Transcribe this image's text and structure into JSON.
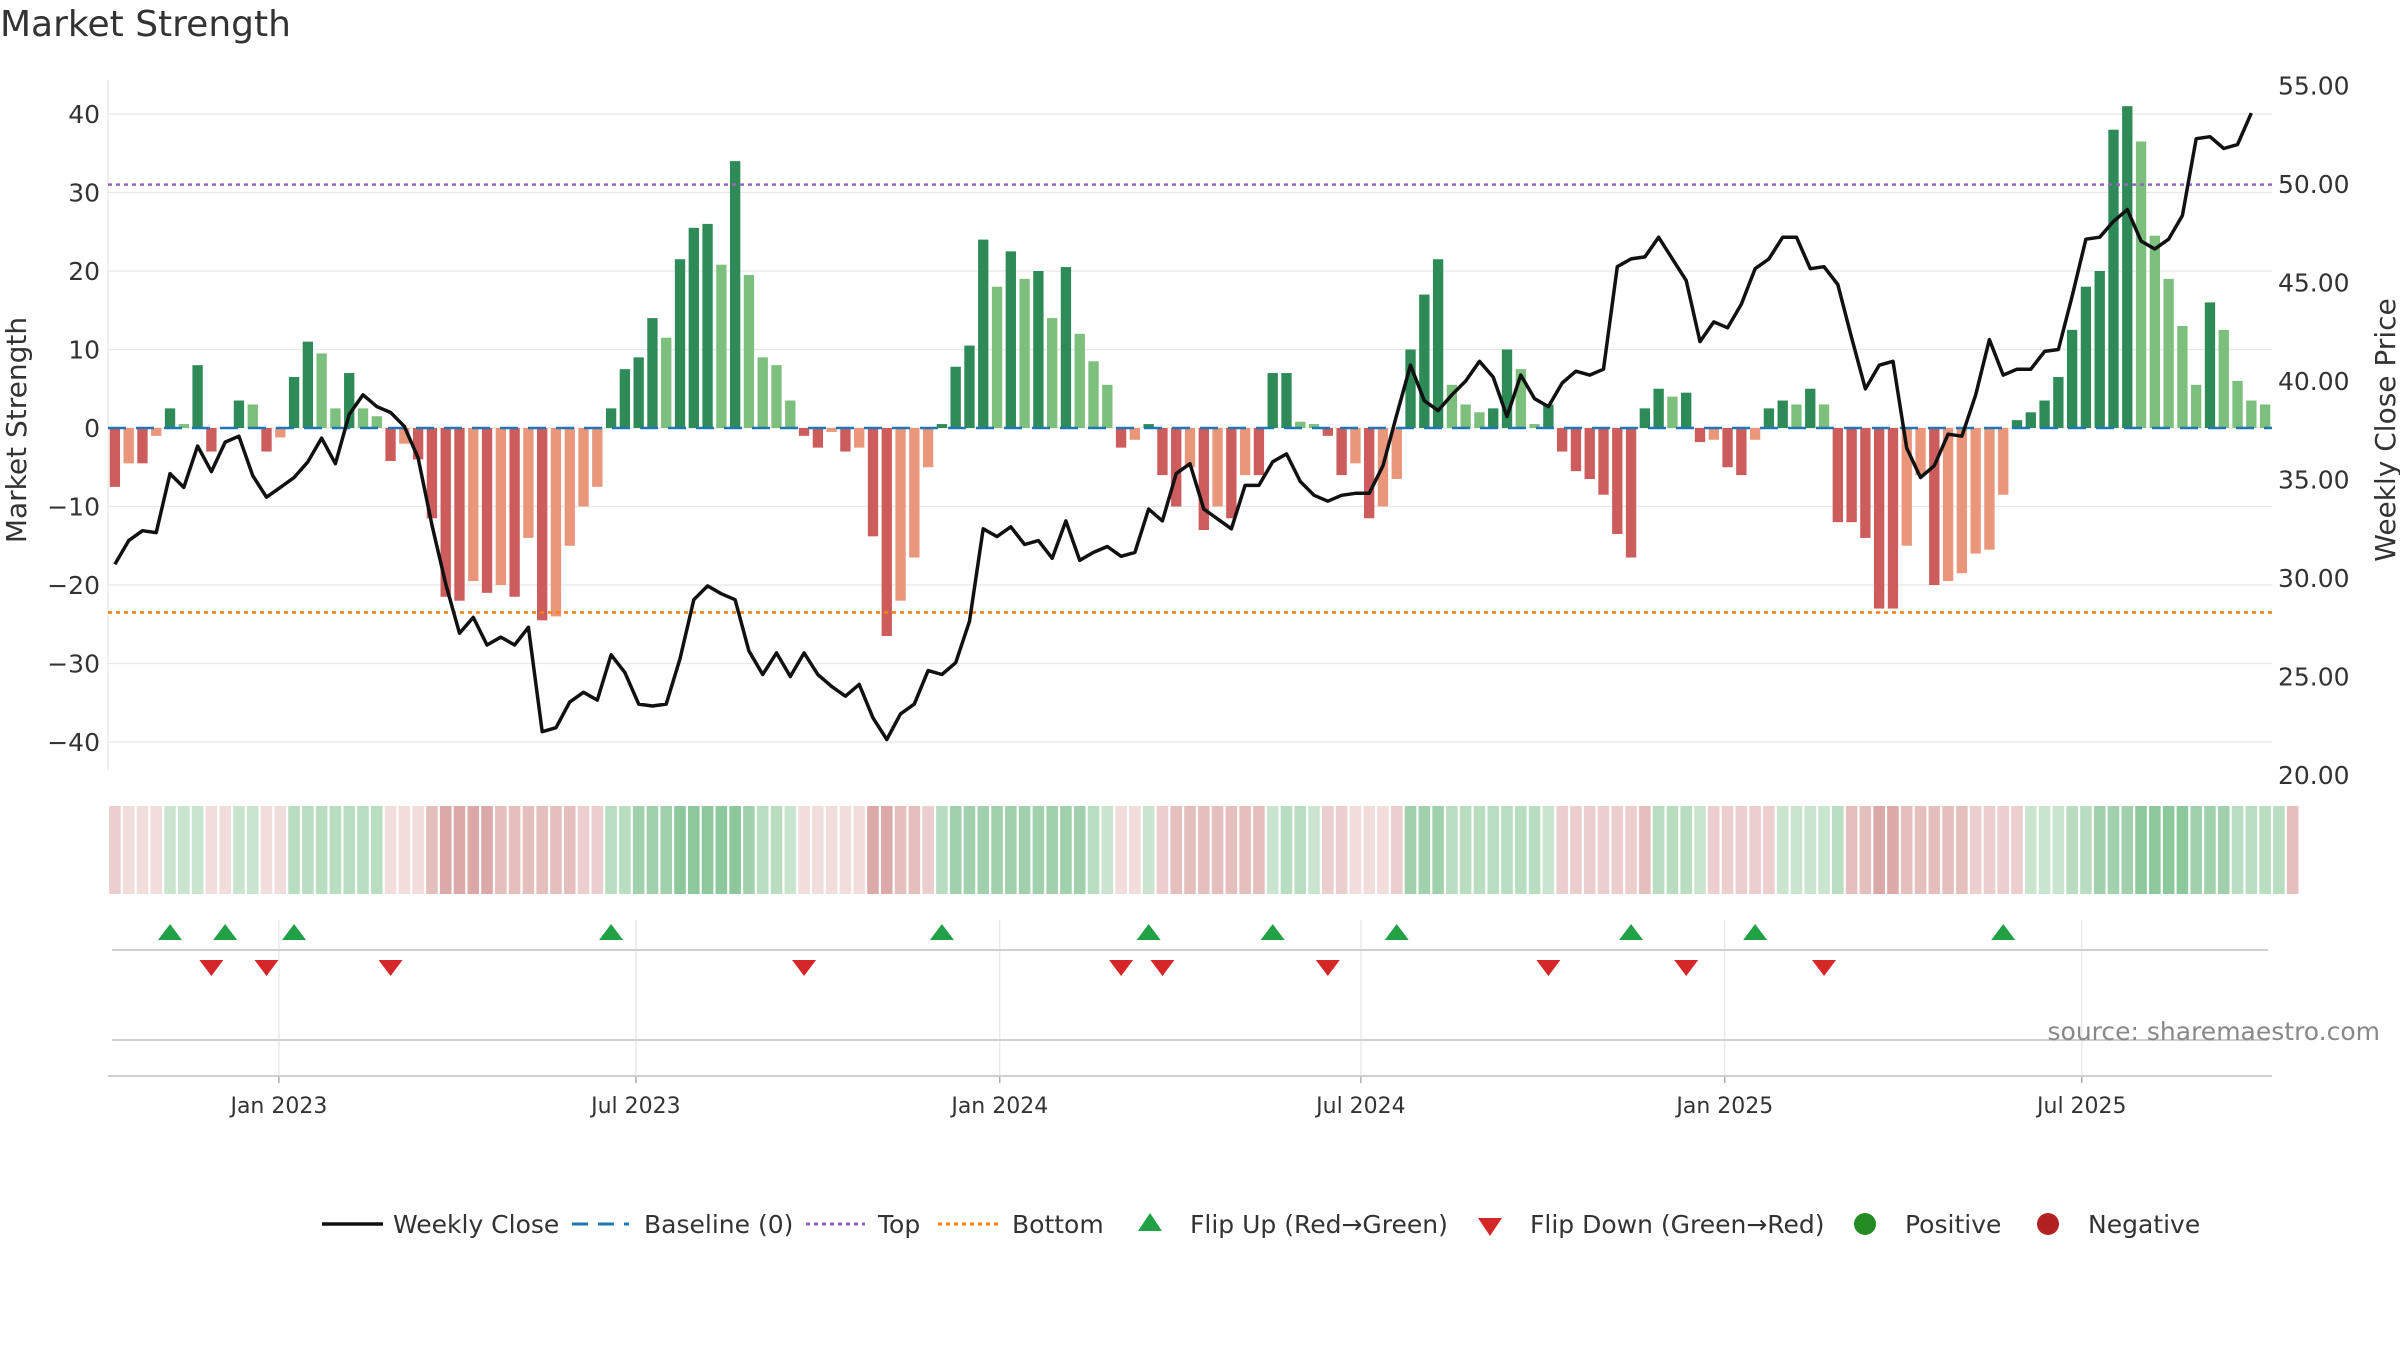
{
  "chart_data": {
    "type": "bar",
    "title": "Market Strength",
    "ylabel": "Market Strength",
    "y2label": "Weekly Close Price",
    "ylim": [
      -44,
      44
    ],
    "y2lim": [
      20,
      55
    ],
    "yticks": [
      40,
      30,
      20,
      10,
      0,
      -10,
      -20,
      -30,
      -40
    ],
    "y2ticks": [
      "55.00",
      "50.00",
      "45.00",
      "40.00",
      "35.00",
      "30.00",
      "25.00",
      "20.00"
    ],
    "top_level": 31,
    "bottom_level": -23.5,
    "start_date": "2022-10-07",
    "x_ticks": [
      {
        "label": "Jan 2023",
        "week": 12.4
      },
      {
        "label": "Jul 2023",
        "week": 38.3
      },
      {
        "label": "Jan 2024",
        "week": 64.7
      },
      {
        "label": "Jul 2024",
        "week": 90.9
      },
      {
        "label": "Jan 2025",
        "week": 117.3
      },
      {
        "label": "Jul 2025",
        "week": 143.2
      }
    ],
    "strength": [
      -7.5,
      -4.5,
      -4.5,
      -1,
      2.5,
      0.5,
      8,
      -3,
      0,
      3.5,
      3,
      -3,
      -1.2,
      6.5,
      11,
      9.5,
      2.5,
      7,
      2.5,
      1.5,
      -4.2,
      -2,
      -4,
      -11.5,
      -21.5,
      -22,
      -19.5,
      -21,
      -20,
      -21.5,
      -14,
      -24.5,
      -24,
      -15,
      -10,
      -7.5,
      2.5,
      7.5,
      9,
      14,
      11.5,
      21.5,
      25.5,
      26,
      20.8,
      34,
      19.5,
      9,
      8,
      3.5,
      -1,
      -2.5,
      -0.5,
      -3,
      -2.5,
      -13.8,
      -26.5,
      -22,
      -16.5,
      -5,
      0.5,
      7.8,
      10.5,
      24,
      18,
      22.5,
      19,
      20,
      14,
      20.5,
      12,
      8.5,
      5.5,
      -2.5,
      -1.5,
      0.5,
      -6,
      -10,
      -5,
      -13,
      -10,
      -11.5,
      -6,
      -6,
      7,
      7,
      0.8,
      0.5,
      -1,
      -6,
      -4.5,
      -11.5,
      -10,
      -6.5,
      10,
      17,
      21.5,
      5.5,
      3,
      2,
      2.5,
      10,
      7.5,
      0.5,
      3,
      -3,
      -5.5,
      -6.5,
      -8.5,
      -13.5,
      -16.5,
      2.5,
      5,
      4,
      4.5,
      -1.8,
      -1.5,
      -5,
      -6,
      -1.5,
      2.5,
      3.5,
      3,
      5,
      3,
      -12,
      -12,
      -14,
      -23,
      -23,
      -15,
      -6,
      -20,
      -19.5,
      -18.5,
      -16,
      -15.5,
      -8.5,
      1,
      2,
      3.5,
      6.5,
      12.5,
      18,
      20,
      38,
      41,
      36.5,
      24.5,
      19,
      13,
      5.5,
      16,
      12.5,
      6,
      3.5,
      3
    ],
    "weekly_close": [
      30.7,
      31.9,
      32.4,
      32.3,
      35.3,
      34.6,
      36.7,
      35.4,
      36.9,
      37.2,
      35.2,
      34.1,
      34.6,
      35.1,
      35.9,
      37.1,
      35.8,
      38.3,
      39.3,
      38.7,
      38.4,
      37.7,
      36.1,
      32.7,
      29.7,
      27.2,
      28,
      26.6,
      27,
      26.6,
      27.5,
      22.2,
      22.4,
      23.7,
      24.2,
      23.8,
      26.1,
      25.2,
      23.6,
      23.5,
      23.6,
      25.9,
      28.9,
      29.6,
      29.2,
      28.9,
      26.3,
      25.1,
      26.2,
      25,
      26.2,
      25.1,
      24.5,
      24,
      24.6,
      22.9,
      21.8,
      23.1,
      23.6,
      25.3,
      25.1,
      25.7,
      27.8,
      32.5,
      32.1,
      32.6,
      31.7,
      31.9,
      31,
      32.9,
      30.9,
      31.3,
      31.6,
      31.1,
      31.3,
      33.5,
      32.9,
      35.3,
      35.8,
      33.5,
      33,
      32.5,
      34.7,
      34.7,
      35.9,
      36.3,
      34.9,
      34.2,
      33.9,
      34.2,
      34.3,
      34.3,
      35.7,
      38.3,
      40.8,
      39,
      38.5,
      39.3,
      40,
      41,
      40.2,
      38.2,
      40.3,
      39.1,
      38.7,
      39.9,
      40.5,
      40.3,
      40.6,
      45.8,
      46.2,
      46.3,
      47.3,
      46.2,
      45.1,
      42,
      43,
      42.7,
      43.9,
      45.7,
      46.2,
      47.3,
      47.3,
      45.7,
      45.8,
      44.9,
      42.2,
      39.6,
      40.8,
      41,
      36.6,
      35.1,
      35.7,
      37.3,
      37.2,
      39.3,
      42.1,
      40.3,
      40.6,
      40.6,
      41.5,
      41.6,
      44.3,
      47.2,
      47.3,
      48.1,
      48.7,
      47.1,
      46.7,
      47.2,
      48.4,
      52.3,
      52.4,
      51.8,
      52,
      53.6
    ],
    "sentiment_shade": [
      2,
      1,
      1,
      1,
      2,
      2,
      2,
      1,
      1,
      2,
      2,
      1,
      1,
      3,
      3,
      3,
      3,
      3,
      3,
      3,
      1,
      1,
      1,
      3,
      4,
      4,
      4,
      4,
      3,
      3,
      3,
      3,
      3,
      3,
      2,
      2,
      3,
      3,
      4,
      4,
      4,
      5,
      5,
      5,
      5,
      5,
      4,
      3,
      3,
      2,
      1,
      1,
      1,
      1,
      1,
      4,
      4,
      3,
      3,
      2,
      3,
      4,
      4,
      4,
      4,
      4,
      4,
      4,
      4,
      4,
      4,
      3,
      2,
      1,
      1,
      2,
      2,
      3,
      3,
      3,
      3,
      3,
      3,
      3,
      2,
      3,
      3,
      2,
      2,
      2,
      1,
      1,
      1,
      2,
      4,
      4,
      4,
      3,
      3,
      3,
      3,
      3,
      3,
      3,
      2,
      2,
      2,
      2,
      2,
      2,
      2,
      3,
      3,
      3,
      3,
      2,
      2,
      2,
      2,
      2,
      2,
      2,
      2,
      2,
      2,
      3,
      3,
      3,
      4,
      4,
      3,
      3,
      3,
      3,
      3,
      2,
      2,
      2,
      2,
      2,
      2,
      2,
      3,
      3,
      4,
      4,
      4,
      5,
      5,
      5,
      5,
      4,
      4,
      4,
      3,
      3,
      3,
      3,
      3
    ],
    "sentiment_sign": [
      "-",
      "-",
      "-",
      "-",
      "+",
      "+",
      "+",
      "-",
      "-",
      "+",
      "+",
      "-",
      "-",
      "+",
      "+",
      "+",
      "+",
      "+",
      "+",
      "+",
      "-",
      "-",
      "-",
      "-",
      "-",
      "-",
      "-",
      "-",
      "-",
      "-",
      "-",
      "-",
      "-",
      "-",
      "-",
      "-",
      "+",
      "+",
      "+",
      "+",
      "+",
      "+",
      "+",
      "+",
      "+",
      "+",
      "+",
      "+",
      "+",
      "+",
      "-",
      "-",
      "-",
      "-",
      "-",
      "-",
      "-",
      "-",
      "-",
      "-",
      "+",
      "+",
      "+",
      "+",
      "+",
      "+",
      "+",
      "+",
      "+",
      "+",
      "+",
      "+",
      "+",
      "-",
      "-",
      "+",
      "-",
      "-",
      "-",
      "-",
      "-",
      "-",
      "-",
      "-",
      "+",
      "+",
      "+",
      "+",
      "-",
      "-",
      "-",
      "-",
      "-",
      "-",
      "+",
      "+",
      "+",
      "+",
      "+",
      "+",
      "+",
      "+",
      "+",
      "+",
      "+",
      "-",
      "-",
      "-",
      "-",
      "-",
      "-",
      "-",
      "+",
      "+",
      "+",
      "+",
      "-",
      "-",
      "-",
      "-",
      "-",
      "+",
      "+",
      "+",
      "+",
      "+",
      "-",
      "-",
      "-",
      "-",
      "-",
      "-",
      "-",
      "-",
      "-",
      "-",
      "-",
      "-",
      "-",
      "+",
      "+",
      "+",
      "+",
      "+",
      "+",
      "+",
      "+",
      "+",
      "+",
      "+",
      "+",
      "+",
      "+",
      "+",
      "+",
      "+",
      "+",
      "+"
    ],
    "flip_up_weeks": [
      4,
      8,
      13,
      36,
      60,
      75,
      84,
      93,
      110,
      119,
      137
    ],
    "flip_down_weeks": [
      7,
      11,
      20,
      50,
      73,
      76,
      88,
      104,
      114,
      124
    ],
    "annotations": [
      "source: sharemaestro.com"
    ],
    "legend": {
      "weekly_close": "Weekly Close",
      "baseline": "Baseline (0)",
      "top": "Top",
      "bottom": "Bottom",
      "flip_up": "Flip Up (Red→Green)",
      "flip_down": "Flip Down (Green→Red)",
      "positive": "Positive",
      "negative": "Negative"
    },
    "colors": {
      "pos_strong": "#2e8b57",
      "pos_light": "#7dbf7d",
      "neg_strong": "#cd5c5c",
      "neg_light": "#e9967a",
      "close_line": "#111111",
      "baseline": "#1f77b4",
      "top_line": "#9467bd",
      "bottom_line": "#ff7f0e",
      "flip_up": "#22a046",
      "flip_down": "#d62728",
      "positive_dot": "#228b22",
      "negative_dot": "#b22222",
      "grid": "#e8e8e8",
      "text": "#333333",
      "source_text": "#888888"
    }
  }
}
